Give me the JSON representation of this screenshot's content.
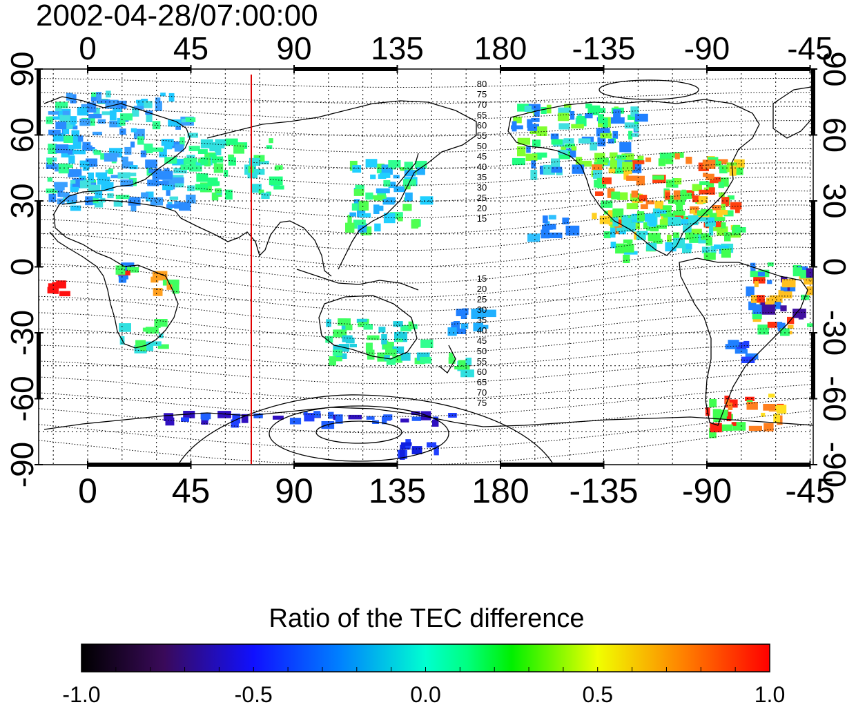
{
  "timestamp": "2002-04-28/07:00:00",
  "longitude_ticks": [
    "0",
    "45",
    "90",
    "135",
    "180",
    "-135",
    "-90",
    "-45"
  ],
  "latitude_ticks": [
    "90",
    "60",
    "30",
    "0",
    "-30",
    "-60",
    "-90"
  ],
  "contour_labels_north": [
    "80",
    "75",
    "70",
    "65",
    "60",
    "55",
    "50",
    "45",
    "40",
    "35",
    "30",
    "25",
    "20",
    "15"
  ],
  "contour_labels_south": [
    "15",
    "20",
    "25",
    "30",
    "35",
    "40",
    "45",
    "50",
    "55",
    "60",
    "65",
    "70",
    "75"
  ],
  "colorbar": {
    "title": "Ratio of the TEC difference",
    "tick_labels": [
      "-1.0",
      "-0.5",
      "0.0",
      "0.5",
      "1.0"
    ],
    "min": -1.0,
    "max": 1.0
  },
  "reference_meridian": 75,
  "colors": {
    "reference_line": "#e00000",
    "frame": "#000000"
  }
}
